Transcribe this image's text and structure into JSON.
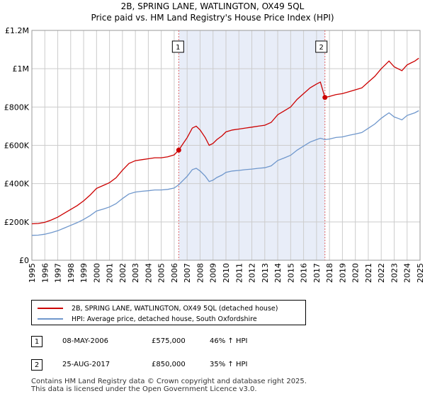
{
  "title": "2B, SPRING LANE, WATLINGTON, OX49 5QL",
  "subtitle": "Price paid vs. HM Land Registry's House Price Index (HPI)",
  "colors": {
    "property": "#cc0000",
    "hpi": "#6f97cc",
    "shade": "#e8edf8",
    "grid": "#cccccc",
    "marker_line": "#e06666"
  },
  "chart_data": {
    "type": "line",
    "x_range": [
      1995,
      2025
    ],
    "ylim": [
      0,
      1200000
    ],
    "y_ticks": [
      {
        "value": 0,
        "label": "£0"
      },
      {
        "value": 200000,
        "label": "£200K"
      },
      {
        "value": 400000,
        "label": "£400K"
      },
      {
        "value": 600000,
        "label": "£600K"
      },
      {
        "value": 800000,
        "label": "£800K"
      },
      {
        "value": 1000000,
        "label": "£1M"
      },
      {
        "value": 1200000,
        "label": "£1.2M"
      }
    ],
    "x_ticks": [
      "1995",
      "1996",
      "1997",
      "1998",
      "1999",
      "2000",
      "2001",
      "2002",
      "2003",
      "2004",
      "2005",
      "2006",
      "2007",
      "2008",
      "2009",
      "2010",
      "2011",
      "2012",
      "2013",
      "2014",
      "2015",
      "2016",
      "2017",
      "2018",
      "2019",
      "2020",
      "2021",
      "2022",
      "2023",
      "2024",
      "2025"
    ],
    "shaded_period": [
      2006.35,
      2017.65
    ],
    "series": [
      {
        "name": "2B, SPRING LANE, WATLINGTON, OX49 5QL (detached house)",
        "color": "#cc0000",
        "x": [
          1995.0,
          1995.5,
          1996.0,
          1996.5,
          1997.0,
          1997.5,
          1998.0,
          1998.5,
          1999.0,
          1999.5,
          2000.0,
          2000.5,
          2001.0,
          2001.5,
          2002.0,
          2002.5,
          2003.0,
          2003.5,
          2004.0,
          2004.5,
          2005.0,
          2005.5,
          2006.0,
          2006.35,
          2006.7,
          2007.0,
          2007.4,
          2007.7,
          2008.0,
          2008.4,
          2008.7,
          2009.0,
          2009.3,
          2009.7,
          2010.0,
          2010.5,
          2011.0,
          2011.5,
          2012.0,
          2012.5,
          2013.0,
          2013.5,
          2014.0,
          2014.5,
          2015.0,
          2015.5,
          2016.0,
          2016.5,
          2017.0,
          2017.3,
          2017.65,
          2018.0,
          2018.5,
          2019.0,
          2019.5,
          2020.0,
          2020.5,
          2021.0,
          2021.5,
          2022.0,
          2022.3,
          2022.6,
          2023.0,
          2023.3,
          2023.6,
          2024.0,
          2024.3,
          2024.6,
          2024.9
        ],
        "values": [
          190000,
          192000,
          198000,
          210000,
          225000,
          245000,
          265000,
          285000,
          310000,
          340000,
          375000,
          390000,
          405000,
          430000,
          470000,
          505000,
          520000,
          525000,
          530000,
          535000,
          535000,
          540000,
          550000,
          575000,
          610000,
          640000,
          690000,
          700000,
          680000,
          640000,
          600000,
          610000,
          630000,
          650000,
          670000,
          680000,
          685000,
          690000,
          695000,
          700000,
          705000,
          720000,
          760000,
          780000,
          800000,
          840000,
          870000,
          900000,
          920000,
          930000,
          850000,
          855000,
          865000,
          870000,
          880000,
          890000,
          900000,
          930000,
          960000,
          1000000,
          1020000,
          1040000,
          1010000,
          1000000,
          990000,
          1020000,
          1030000,
          1040000,
          1055000
        ]
      },
      {
        "name": "HPI: Average price, detached house, South Oxfordshire",
        "color": "#6f97cc",
        "x": [
          1995.0,
          1995.5,
          1996.0,
          1996.5,
          1997.0,
          1997.5,
          1998.0,
          1998.5,
          1999.0,
          1999.5,
          2000.0,
          2000.5,
          2001.0,
          2001.5,
          2002.0,
          2002.5,
          2003.0,
          2003.5,
          2004.0,
          2004.5,
          2005.0,
          2005.5,
          2006.0,
          2006.35,
          2006.7,
          2007.0,
          2007.4,
          2007.7,
          2008.0,
          2008.4,
          2008.7,
          2009.0,
          2009.3,
          2009.7,
          2010.0,
          2010.5,
          2011.0,
          2011.5,
          2012.0,
          2012.5,
          2013.0,
          2013.5,
          2014.0,
          2014.5,
          2015.0,
          2015.5,
          2016.0,
          2016.5,
          2017.0,
          2017.3,
          2017.65,
          2018.0,
          2018.5,
          2019.0,
          2019.5,
          2020.0,
          2020.5,
          2021.0,
          2021.5,
          2022.0,
          2022.3,
          2022.6,
          2023.0,
          2023.3,
          2023.6,
          2024.0,
          2024.3,
          2024.6,
          2024.9
        ],
        "values": [
          130000,
          131000,
          136000,
          144000,
          154000,
          168000,
          182000,
          196000,
          213000,
          233000,
          257000,
          267000,
          278000,
          295000,
          322000,
          346000,
          356000,
          360000,
          363000,
          367000,
          367000,
          370000,
          377000,
          394000,
          418000,
          438000,
          473000,
          480000,
          466000,
          439000,
          411000,
          418000,
          432000,
          445000,
          459000,
          466000,
          469000,
          473000,
          476000,
          480000,
          483000,
          493000,
          521000,
          534000,
          548000,
          575000,
          596000,
          617000,
          630000,
          637000,
          630000,
          633000,
          641000,
          644000,
          652000,
          659000,
          667000,
          689000,
          711000,
          741000,
          756000,
          770000,
          748000,
          741000,
          733000,
          756000,
          763000,
          770000,
          781000
        ]
      }
    ],
    "sales": [
      {
        "label": "1",
        "x": 2006.35,
        "value": 575000
      },
      {
        "label": "2",
        "x": 2017.65,
        "value": 850000
      }
    ]
  },
  "legend": {
    "property": "2B, SPRING LANE, WATLINGTON, OX49 5QL (detached house)",
    "hpi": "HPI: Average price, detached house, South Oxfordshire"
  },
  "sales_table": [
    {
      "num": "1",
      "date": "08-MAY-2006",
      "price": "£575,000",
      "hpi": "46% ↑ HPI"
    },
    {
      "num": "2",
      "date": "25-AUG-2017",
      "price": "£850,000",
      "hpi": "35% ↑ HPI"
    }
  ],
  "footer": {
    "line1": "Contains HM Land Registry data © Crown copyright and database right 2025.",
    "line2": "This data is licensed under the Open Government Licence v3.0."
  }
}
